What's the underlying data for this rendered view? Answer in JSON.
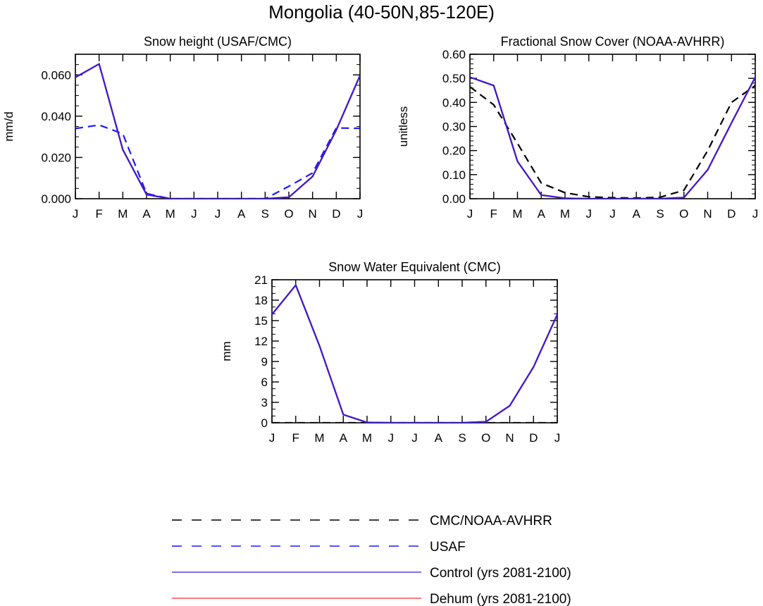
{
  "title": "Mongolia (40-50N,85-120E)",
  "months": [
    "J",
    "F",
    "M",
    "A",
    "M",
    "J",
    "J",
    "A",
    "S",
    "O",
    "N",
    "D",
    "J"
  ],
  "colors": {
    "cmc_noaa": "#000000",
    "usaf": "#1a1aff",
    "control": "#3a1ad6",
    "dehum": "#ff2a2a"
  },
  "chart_data": [
    {
      "type": "line",
      "title": "Snow height (USAF/CMC)",
      "ylabel": "mm/d",
      "xlabel": "",
      "ylim": [
        0,
        0.07
      ],
      "yticks": [
        0,
        0.02,
        0.04,
        0.06
      ],
      "ytick_labels": [
        "0.000",
        "0.020",
        "0.040",
        "0.060"
      ],
      "yminor_step": 0.005,
      "x": [
        "J",
        "F",
        "M",
        "A",
        "M",
        "J",
        "J",
        "A",
        "S",
        "O",
        "N",
        "D",
        "J"
      ],
      "series": [
        {
          "name": "USAF",
          "style": "dashed",
          "color": "#1a1aff",
          "values": [
            0.034,
            0.0357,
            0.0315,
            0.0025,
            0,
            0,
            0,
            0,
            0,
            0.006,
            0.0125,
            0.0343,
            0.0341
          ]
        },
        {
          "name": "Dehum (yrs 2081-2100)",
          "style": "solid",
          "color": "#ff2a2a",
          "values": [
            0.0588,
            0.0653,
            0.0238,
            0.002,
            0,
            0,
            0,
            0,
            0,
            0.0007,
            0.0108,
            0.0333,
            0.0597
          ]
        },
        {
          "name": "Control (yrs 2081-2100)",
          "style": "solid",
          "color": "#3a1ad6",
          "values": [
            0.0588,
            0.0653,
            0.0238,
            0.002,
            0,
            0,
            0,
            0,
            0,
            0.0007,
            0.0108,
            0.0333,
            0.0597
          ]
        }
      ]
    },
    {
      "type": "line",
      "title": "Fractional Snow Cover (NOAA-AVHRR)",
      "ylabel": "unitless",
      "xlabel": "",
      "ylim": [
        0,
        0.6
      ],
      "yticks": [
        0,
        0.1,
        0.2,
        0.3,
        0.4,
        0.5,
        0.6
      ],
      "ytick_labels": [
        "0.00",
        "0.10",
        "0.20",
        "0.30",
        "0.40",
        "0.50",
        "0.60"
      ],
      "yminor_step": 0.02,
      "x": [
        "J",
        "F",
        "M",
        "A",
        "M",
        "J",
        "J",
        "A",
        "S",
        "O",
        "N",
        "D",
        "J"
      ],
      "series": [
        {
          "name": "CMC/NOAA-AVHRR",
          "style": "dashed",
          "color": "#000000",
          "values": [
            0.465,
            0.39,
            0.23,
            0.065,
            0.025,
            0.008,
            0.004,
            0.003,
            0.006,
            0.035,
            0.2,
            0.4,
            0.47
          ]
        },
        {
          "name": "Dehum (yrs 2081-2100)",
          "style": "solid",
          "color": "#ff2a2a",
          "values": [
            0.505,
            0.47,
            0.155,
            0.015,
            0.002,
            0,
            0,
            0,
            0,
            0.005,
            0.12,
            0.315,
            0.505
          ]
        },
        {
          "name": "Control (yrs 2081-2100)",
          "style": "solid",
          "color": "#3a1ad6",
          "values": [
            0.505,
            0.47,
            0.155,
            0.015,
            0.002,
            0,
            0,
            0,
            0,
            0.005,
            0.12,
            0.315,
            0.505
          ]
        }
      ]
    },
    {
      "type": "line",
      "title": "Snow Water Equivalent (CMC)",
      "ylabel": "mm",
      "xlabel": "",
      "ylim": [
        0,
        21
      ],
      "yticks": [
        0,
        3,
        6,
        9,
        12,
        15,
        18,
        21
      ],
      "ytick_labels": [
        "0",
        "3",
        "6",
        "9",
        "12",
        "15",
        "18",
        "21"
      ],
      "yminor_step": 1,
      "x": [
        "J",
        "F",
        "M",
        "A",
        "M",
        "J",
        "J",
        "A",
        "S",
        "O",
        "N",
        "D",
        "J"
      ],
      "series": [
        {
          "name": "CMC/NOAA-AVHRR",
          "style": "dashed",
          "color": "#000000",
          "values": [
            0,
            0,
            0,
            0,
            0,
            0,
            0,
            0,
            0,
            0,
            0,
            0,
            0
          ]
        },
        {
          "name": "Dehum (yrs 2081-2100)",
          "style": "solid",
          "color": "#ff2a2a",
          "values": [
            15.9,
            20.2,
            11.3,
            1.2,
            0.05,
            0,
            0,
            0,
            0,
            0.15,
            2.5,
            8.2,
            15.9
          ]
        },
        {
          "name": "Control (yrs 2081-2100)",
          "style": "solid",
          "color": "#3a1ad6",
          "values": [
            15.9,
            20.2,
            11.3,
            1.2,
            0.05,
            0,
            0,
            0,
            0,
            0.15,
            2.5,
            8.2,
            15.9
          ]
        }
      ]
    }
  ],
  "legend": [
    {
      "label": "CMC/NOAA-AVHRR",
      "style": "dashed",
      "color": "#000000"
    },
    {
      "label": "USAF",
      "style": "dashed",
      "color": "#1a1aff"
    },
    {
      "label": "Control (yrs 2081-2100)",
      "style": "solid",
      "color": "#3a1ad6"
    },
    {
      "label": "Dehum (yrs 2081-2100)",
      "style": "solid",
      "color": "#ff2a2a"
    }
  ]
}
